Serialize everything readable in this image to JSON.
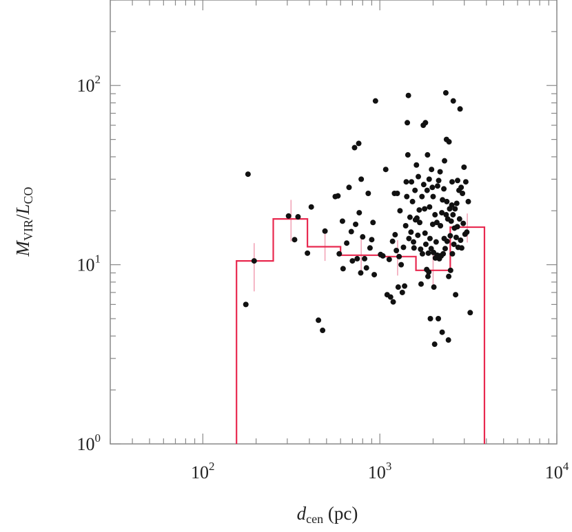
{
  "chart_data": {
    "type": "scatter",
    "x_scale": "log",
    "y_scale": "log",
    "xlim": [
      30,
      10000
    ],
    "ylim": [
      1,
      300
    ],
    "x_ticks": [
      {
        "base": "10",
        "exp": "2"
      },
      {
        "base": "10",
        "exp": "3"
      },
      {
        "base": "10",
        "exp": "4"
      }
    ],
    "y_ticks": [
      {
        "base": "10",
        "exp": "0"
      },
      {
        "base": "10",
        "exp": "1"
      },
      {
        "base": "10",
        "exp": "2"
      }
    ],
    "xlabel": {
      "main": "d",
      "sub": "cen",
      "unit": " (pc)"
    },
    "ylabel": {
      "num": "M",
      "num_sub": "VIR",
      "sep": "/",
      "den": "L",
      "den_sub": "CO"
    },
    "colors": {
      "points": "#111111",
      "histogram": "#e8284f",
      "errorbars": "#f2a5b8",
      "frame": "#888888"
    },
    "points": [
      [
        175,
        6.0
      ],
      [
        180,
        32.0
      ],
      [
        195,
        10.5
      ],
      [
        305,
        18.7
      ],
      [
        330,
        13.8
      ],
      [
        345,
        18.5
      ],
      [
        390,
        11.6
      ],
      [
        410,
        21.0
      ],
      [
        450,
        4.9
      ],
      [
        475,
        4.3
      ],
      [
        490,
        15.4
      ],
      [
        560,
        24.0
      ],
      [
        580,
        24.2
      ],
      [
        590,
        11.5
      ],
      [
        615,
        17.5
      ],
      [
        620,
        9.5
      ],
      [
        650,
        13.2
      ],
      [
        670,
        27.0
      ],
      [
        690,
        15.3
      ],
      [
        700,
        10.5
      ],
      [
        720,
        45.0
      ],
      [
        730,
        16.8
      ],
      [
        745,
        10.8
      ],
      [
        760,
        47.5
      ],
      [
        765,
        19.5
      ],
      [
        780,
        9.0
      ],
      [
        785,
        30.0
      ],
      [
        800,
        14.3
      ],
      [
        820,
        10.8
      ],
      [
        840,
        9.6
      ],
      [
        860,
        25.0
      ],
      [
        880,
        12.4
      ],
      [
        900,
        13.8
      ],
      [
        915,
        17.2
      ],
      [
        930,
        8.8
      ],
      [
        945,
        82.0
      ],
      [
        1010,
        11.4
      ],
      [
        1040,
        11.2
      ],
      [
        1080,
        34.0
      ],
      [
        1100,
        6.8
      ],
      [
        1130,
        10.7
      ],
      [
        1150,
        6.6
      ],
      [
        1180,
        13.5
      ],
      [
        1190,
        6.2
      ],
      [
        1210,
        25.0
      ],
      [
        1220,
        14.7
      ],
      [
        1240,
        12.0
      ],
      [
        1255,
        25.0
      ],
      [
        1270,
        7.5
      ],
      [
        1285,
        11.1
      ],
      [
        1300,
        20.0
      ],
      [
        1320,
        10.0
      ],
      [
        1340,
        7.0
      ],
      [
        1360,
        12.5
      ],
      [
        1380,
        7.6
      ],
      [
        1400,
        16.5
      ],
      [
        1410,
        29.0
      ],
      [
        1420,
        24.0
      ],
      [
        1430,
        62.0
      ],
      [
        1440,
        41.0
      ],
      [
        1450,
        88.0
      ],
      [
        1460,
        14.0
      ],
      [
        1480,
        18.4
      ],
      [
        1500,
        15.2
      ],
      [
        1510,
        29.0
      ],
      [
        1530,
        22.5
      ],
      [
        1550,
        13.4
      ],
      [
        1560,
        12.4
      ],
      [
        1580,
        26.0
      ],
      [
        1590,
        17.8
      ],
      [
        1610,
        36.0
      ],
      [
        1620,
        18.2
      ],
      [
        1640,
        14.6
      ],
      [
        1650,
        31.0
      ],
      [
        1670,
        20.2
      ],
      [
        1680,
        17.2
      ],
      [
        1700,
        12.2
      ],
      [
        1710,
        7.8
      ],
      [
        1730,
        24.0
      ],
      [
        1740,
        11.5
      ],
      [
        1760,
        60.0
      ],
      [
        1770,
        28.0
      ],
      [
        1790,
        20.5
      ],
      [
        1800,
        15.0
      ],
      [
        1810,
        62.0
      ],
      [
        1820,
        13.0
      ],
      [
        1840,
        9.4
      ],
      [
        1850,
        26.0
      ],
      [
        1860,
        41.0
      ],
      [
        1870,
        8.6
      ],
      [
        1880,
        11.6
      ],
      [
        1890,
        9.1
      ],
      [
        1900,
        30.0
      ],
      [
        1910,
        21.0
      ],
      [
        1920,
        14.0
      ],
      [
        1930,
        5.0
      ],
      [
        1950,
        12.3
      ],
      [
        1960,
        34.0
      ],
      [
        1980,
        27.0
      ],
      [
        1990,
        16.8
      ],
      [
        2000,
        24.0
      ],
      [
        2010,
        11.7
      ],
      [
        2020,
        7.5
      ],
      [
        2040,
        3.6
      ],
      [
        2050,
        19.0
      ],
      [
        2060,
        10.9
      ],
      [
        2080,
        13.4
      ],
      [
        2100,
        17.2
      ],
      [
        2110,
        11.3
      ],
      [
        2120,
        27.5
      ],
      [
        2140,
        5.0
      ],
      [
        2150,
        29.5
      ],
      [
        2170,
        10.8
      ],
      [
        2180,
        11.2
      ],
      [
        2190,
        33.0
      ],
      [
        2200,
        16.5
      ],
      [
        2220,
        11.2
      ],
      [
        2240,
        19.5
      ],
      [
        2250,
        4.2
      ],
      [
        2260,
        23.0
      ],
      [
        2280,
        11.5
      ],
      [
        2300,
        26.5
      ],
      [
        2310,
        14.0
      ],
      [
        2320,
        38.0
      ],
      [
        2340,
        12.3
      ],
      [
        2360,
        91.0
      ],
      [
        2370,
        19.0
      ],
      [
        2380,
        50.0
      ],
      [
        2390,
        22.5
      ],
      [
        2400,
        13.5
      ],
      [
        2420,
        18.0
      ],
      [
        2440,
        3.8
      ],
      [
        2450,
        8.6
      ],
      [
        2460,
        48.5
      ],
      [
        2480,
        20.5
      ],
      [
        2500,
        14.5
      ],
      [
        2510,
        9.3
      ],
      [
        2530,
        17.5
      ],
      [
        2550,
        21.5
      ],
      [
        2560,
        29.0
      ],
      [
        2570,
        11.5
      ],
      [
        2590,
        19.0
      ],
      [
        2600,
        82.0
      ],
      [
        2620,
        13.0
      ],
      [
        2640,
        16.0
      ],
      [
        2660,
        20.5
      ],
      [
        2680,
        6.8
      ],
      [
        2700,
        14.2
      ],
      [
        2720,
        22.0
      ],
      [
        2740,
        16.3
      ],
      [
        2750,
        29.5
      ],
      [
        2770,
        12.5
      ],
      [
        2800,
        26.0
      ],
      [
        2820,
        18.0
      ],
      [
        2840,
        74.0
      ],
      [
        2860,
        13.7
      ],
      [
        2880,
        27.0
      ],
      [
        2900,
        12.4
      ],
      [
        2930,
        25.0
      ],
      [
        2960,
        17.0
      ],
      [
        2990,
        35.0
      ],
      [
        3030,
        14.8
      ],
      [
        3060,
        29.0
      ],
      [
        3100,
        15.2
      ],
      [
        3160,
        22.5
      ],
      [
        3240,
        5.4
      ]
    ],
    "histogram": {
      "edges": [
        155,
        250,
        390,
        600,
        1000,
        1600,
        2500,
        3900
      ],
      "values": [
        10.5,
        18.0,
        12.6,
        11.3,
        11.1,
        9.3,
        16.2
      ],
      "error_x": [
        195,
        315,
        490,
        785,
        1260,
        2000,
        3120
      ],
      "error_low": [
        7.1,
        13.5,
        10.5,
        8.9,
        8.7,
        7.6,
        13.3
      ],
      "error_high": [
        13.2,
        23.0,
        15.0,
        14.0,
        13.7,
        11.4,
        19.3
      ]
    }
  }
}
